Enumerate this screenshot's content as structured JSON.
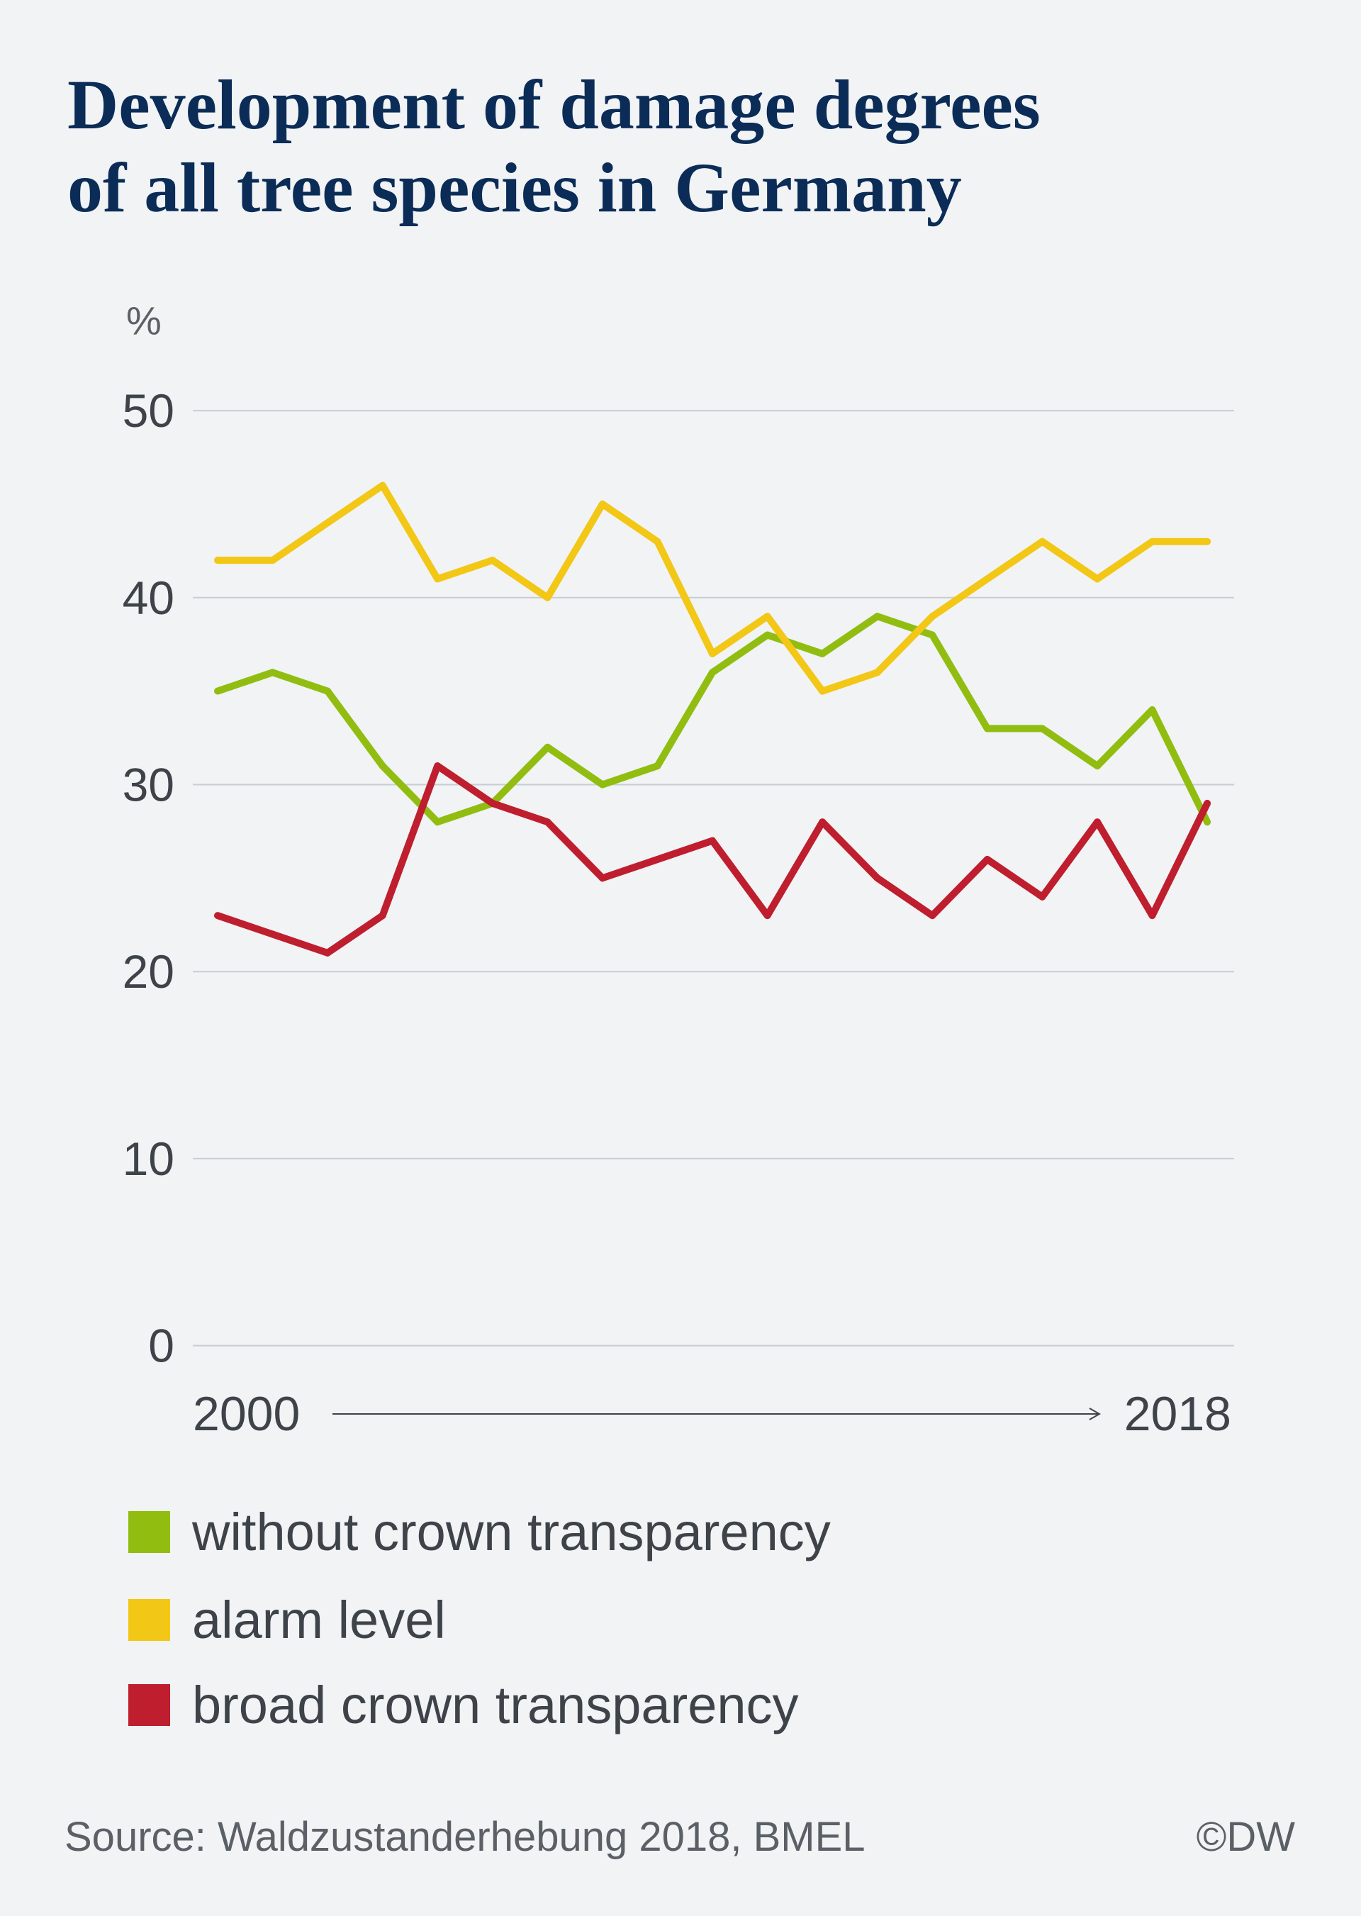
{
  "colors": {
    "background": "#f1f3f5",
    "title": "#0b2c56",
    "text": "#3d4349",
    "gridline": "#c9cdd1"
  },
  "chart_data": {
    "type": "line",
    "title": "Development of damage degrees of all tree species in Germany",
    "xlabel": "",
    "ylabel": "%",
    "x": [
      2000,
      2001,
      2002,
      2003,
      2004,
      2005,
      2006,
      2007,
      2008,
      2009,
      2010,
      2011,
      2012,
      2013,
      2014,
      2015,
      2016,
      2017,
      2018
    ],
    "x_ticks": [
      "2000",
      "2018"
    ],
    "y_ticks": [
      0,
      10,
      20,
      30,
      40,
      50
    ],
    "ylim": [
      0,
      50
    ],
    "grid": "horizontal",
    "legend_position": "bottom",
    "series": [
      {
        "name": "without crown transparency",
        "color": "#91bd10",
        "values": [
          35,
          36,
          35,
          31,
          28,
          29,
          32,
          30,
          31,
          36,
          38,
          37,
          39,
          38,
          33,
          33,
          31,
          34,
          28
        ]
      },
      {
        "name": "alarm level",
        "color": "#f2c715",
        "values": [
          42,
          42,
          44,
          46,
          41,
          42,
          40,
          45,
          43,
          37,
          39,
          35,
          36,
          39,
          41,
          43,
          41,
          43,
          43
        ]
      },
      {
        "name": "broad crown transparency",
        "color": "#be1e2d",
        "values": [
          23,
          22,
          21,
          23,
          31,
          29,
          28,
          25,
          26,
          27,
          23,
          28,
          25,
          23,
          26,
          24,
          28,
          23,
          29
        ]
      }
    ]
  },
  "source": "Source: Waldzustanderhebung 2018, BMEL",
  "credit": "©DW"
}
